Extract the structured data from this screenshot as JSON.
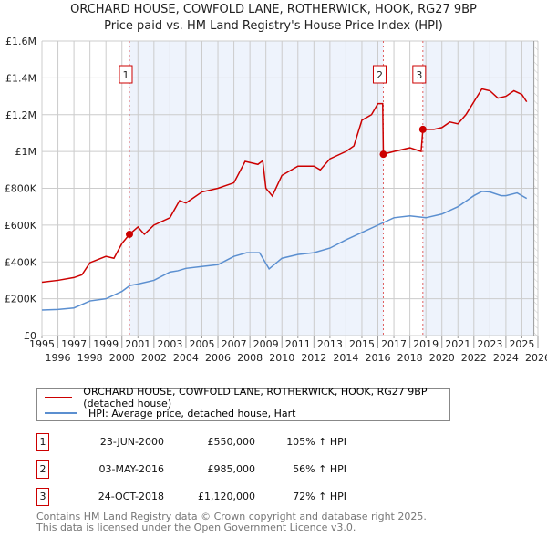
{
  "title": "ORCHARD HOUSE, COWFOLD LANE, ROTHERWICK, HOOK, RG27 9BP",
  "subtitle": "Price paid vs. HM Land Registry's House Price Index (HPI)",
  "chart_data": {
    "type": "line",
    "title": "ORCHARD HOUSE, COWFOLD LANE, ROTHERWICK, HOOK, RG27 9BP",
    "xlim": [
      1995,
      2026
    ],
    "ylim": [
      0,
      1600000
    ],
    "yticks": [
      {
        "v": 0,
        "label": "£0"
      },
      {
        "v": 200000,
        "label": "£200K"
      },
      {
        "v": 400000,
        "label": "£400K"
      },
      {
        "v": 600000,
        "label": "£600K"
      },
      {
        "v": 800000,
        "label": "£800K"
      },
      {
        "v": 1000000,
        "label": "£1M"
      },
      {
        "v": 1200000,
        "label": "£1.2M"
      },
      {
        "v": 1400000,
        "label": "£1.4M"
      },
      {
        "v": 1600000,
        "label": "£1.6M"
      }
    ],
    "xticks": [
      1995,
      1996,
      1997,
      1998,
      1999,
      2000,
      2001,
      2002,
      2003,
      2004,
      2005,
      2006,
      2007,
      2008,
      2009,
      2010,
      2011,
      2012,
      2013,
      2014,
      2015,
      2016,
      2017,
      2018,
      2019,
      2020,
      2021,
      2022,
      2023,
      2024,
      2025,
      2026
    ],
    "data_end": 2025.75,
    "series": [
      {
        "name": "ORCHARD HOUSE, COWFOLD LANE, ROTHERWICK, HOOK, RG27 9BP (detached house)",
        "color": "#cc0000",
        "x": [
          1995,
          1996,
          1997,
          1997.5,
          1998,
          1999,
          1999.5,
          2000,
          2000.47,
          2001,
          2001.4,
          2002,
          2003,
          2003.6,
          2004,
          2005,
          2006,
          2007,
          2007.7,
          2008.5,
          2008.8,
          2009,
          2009.4,
          2010,
          2011,
          2012,
          2012.4,
          2013,
          2014,
          2014.5,
          2015,
          2015.6,
          2016,
          2016.3,
          2016.34,
          2017,
          2018,
          2018.7,
          2018.81,
          2019.5,
          2020,
          2020.5,
          2021,
          2021.5,
          2022,
          2022.5,
          2023,
          2023.5,
          2024,
          2024.5,
          2025,
          2025.3
        ],
        "y": [
          290000,
          300000,
          315000,
          330000,
          396000,
          430000,
          420000,
          500000,
          550000,
          590000,
          550000,
          600000,
          640000,
          733000,
          720000,
          780000,
          800000,
          830000,
          946000,
          930000,
          950000,
          800000,
          758000,
          870000,
          920000,
          920000,
          900000,
          960000,
          1000000,
          1030000,
          1170000,
          1200000,
          1260000,
          1260000,
          985000,
          1000000,
          1020000,
          1000000,
          1120000,
          1120000,
          1130000,
          1160000,
          1150000,
          1200000,
          1270000,
          1340000,
          1330000,
          1290000,
          1300000,
          1330000,
          1310000,
          1270000
        ]
      },
      {
        "name": "HPI: Average price, detached house, Hart",
        "color": "#5b8fd0",
        "x": [
          1995,
          1996,
          1997,
          1998,
          1999,
          2000,
          2000.5,
          2001,
          2002,
          2003,
          2003.5,
          2004,
          2005,
          2006,
          2007,
          2007.8,
          2008.6,
          2009.2,
          2010,
          2011,
          2012,
          2013,
          2014,
          2015,
          2016,
          2017,
          2018,
          2019,
          2020,
          2021,
          2022,
          2022.5,
          2023,
          2023.7,
          2024,
          2024.7,
          2025.3
        ],
        "y": [
          139000,
          142000,
          150000,
          188000,
          200000,
          240000,
          272000,
          280000,
          300000,
          345000,
          352000,
          365000,
          375000,
          385000,
          430000,
          450000,
          450000,
          362000,
          420000,
          440000,
          450000,
          475000,
          520000,
          560000,
          600000,
          640000,
          650000,
          640000,
          660000,
          700000,
          760000,
          783000,
          780000,
          760000,
          760000,
          775000,
          745000
        ]
      }
    ],
    "sales": [
      {
        "num": "1",
        "date": "23-JUN-2000",
        "year": 2000.47,
        "price": 550000,
        "price_label": "£550,000",
        "hpi": "105% ↑ HPI"
      },
      {
        "num": "2",
        "date": "03-MAY-2016",
        "year": 2016.34,
        "price": 985000,
        "price_label": "£985,000",
        "hpi": "56% ↑ HPI"
      },
      {
        "num": "3",
        "date": "24-OCT-2018",
        "year": 2018.81,
        "price": 1120000,
        "price_label": "£1,120,000",
        "hpi": "72% ↑ HPI"
      }
    ]
  },
  "legend": {
    "red": "ORCHARD HOUSE, COWFOLD LANE, ROTHERWICK, HOOK, RG27 9BP (detached house)",
    "blue": "HPI: Average price, detached house, Hart"
  },
  "footer": [
    "Contains HM Land Registry data © Crown copyright and database right 2025.",
    "This data is licensed under the Open Government Licence v3.0."
  ]
}
